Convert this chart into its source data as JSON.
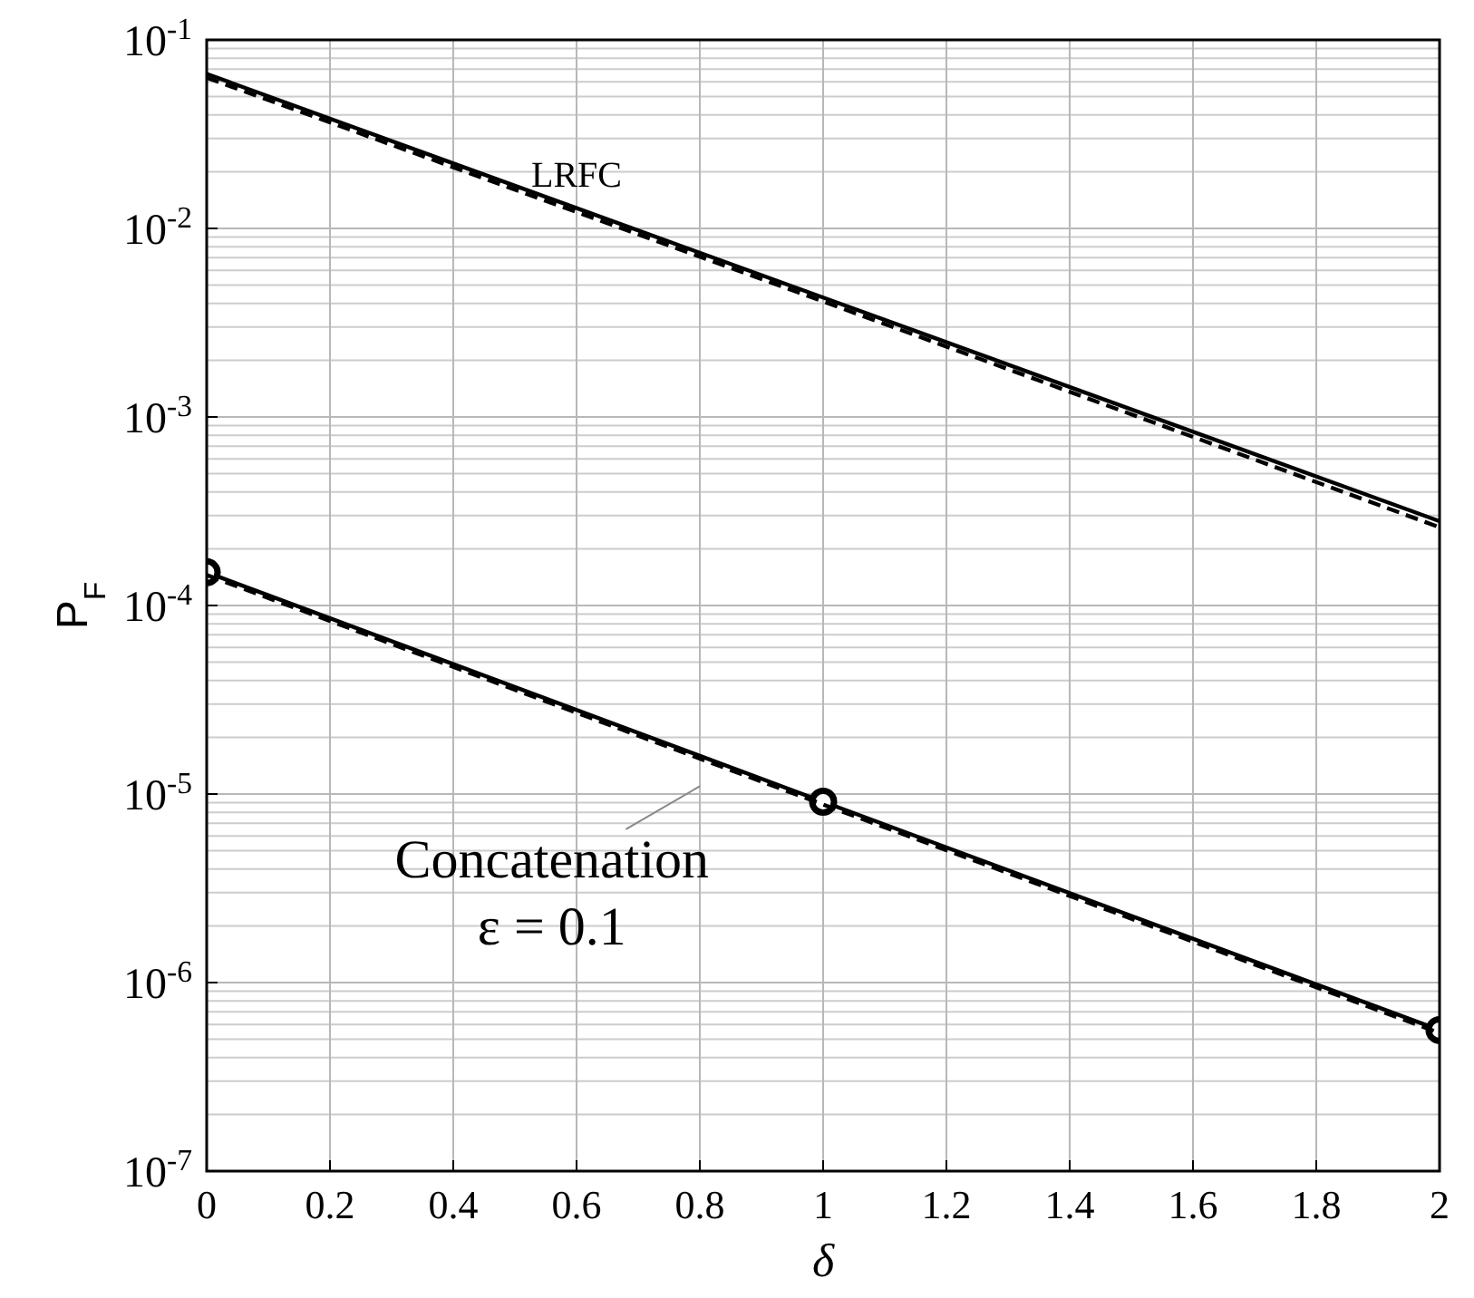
{
  "chart_data": {
    "type": "line",
    "xlabel": "δ",
    "ylabel": "P$_{F}$",
    "log": "y",
    "grid": true,
    "x": [
      0,
      1,
      2
    ],
    "series": [
      {
        "color": "#000000",
        "line_style": "solid",
        "marker": "none",
        "values": [
          0.066,
          0.0043,
          0.00028
        ]
      },
      {
        "color": "#000000",
        "line_style": "dashed",
        "marker": "none",
        "values": [
          0.063,
          0.0041,
          0.00026
        ]
      },
      {
        "color": "#000000",
        "line_style": "solid",
        "marker": "circle",
        "values": [
          0.00015,
          9.1e-06,
          5.6e-07
        ]
      },
      {
        "color": "#000000",
        "line_style": "dashed",
        "marker": "none",
        "values": [
          0.000145,
          8.8e-06,
          5.4e-07
        ]
      }
    ],
    "xlim": [
      0,
      2
    ],
    "xticks": [
      0,
      0.2,
      0.4,
      0.6,
      0.8,
      1,
      1.2,
      1.4,
      1.6,
      1.8,
      2
    ],
    "ylim": [
      1e-07,
      0.1
    ],
    "yticks": [
      {
        "value": 1e-07,
        "label": "10$^{-7}$"
      },
      {
        "value": 1e-06,
        "label": "10$^{-6}$"
      },
      {
        "value": 1e-05,
        "label": "10$^{-5}$"
      },
      {
        "value": 0.0001,
        "label": "10$^{-4}$"
      },
      {
        "value": 0.001,
        "label": "10$^{-3}$"
      },
      {
        "value": 0.01,
        "label": "10$^{-2}$"
      },
      {
        "value": 0.1,
        "label": "10$^{-1}$"
      }
    ],
    "annotations": [
      "LRFC",
      "Concatenation",
      "ε = 0.1"
    ]
  }
}
